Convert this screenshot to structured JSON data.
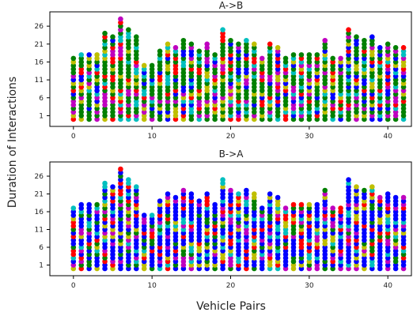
{
  "figure": {
    "ylabel": "Duration of Interactions",
    "xlabel": "Vehicle Pairs"
  },
  "colors": {
    "palette": [
      "#0000ff",
      "#ff0000",
      "#008000",
      "#00bfbf",
      "#bf00bf",
      "#bfbf00"
    ],
    "dominant_top": "#008000",
    "dominant_bottom": "#0000ff"
  },
  "chart_data": [
    {
      "type": "scatter",
      "title": "A->B",
      "xlim": [
        -3,
        43
      ],
      "ylim": [
        -2,
        30
      ],
      "xticks": [
        0,
        10,
        20,
        30,
        40
      ],
      "yticks": [
        1,
        6,
        11,
        16,
        21,
        26
      ],
      "x": [
        0,
        1,
        2,
        3,
        4,
        5,
        6,
        7,
        8,
        9,
        10,
        11,
        12,
        13,
        14,
        15,
        16,
        17,
        18,
        19,
        20,
        21,
        22,
        23,
        24,
        25,
        26,
        27,
        28,
        29,
        30,
        31,
        32,
        33,
        34,
        35,
        36,
        37,
        38,
        39,
        40,
        41,
        42
      ],
      "durations": [
        17,
        18,
        18,
        18,
        24,
        23,
        28,
        25,
        23,
        15,
        15,
        19,
        21,
        20,
        22,
        21,
        19,
        21,
        18,
        25,
        22,
        21,
        22,
        21,
        17,
        21,
        20,
        17,
        18,
        18,
        18,
        18,
        22,
        17,
        17,
        25,
        23,
        22,
        23,
        20,
        21,
        20,
        20
      ],
      "dominant_color": "green"
    },
    {
      "type": "scatter",
      "title": "B->A",
      "xlim": [
        -3,
        43
      ],
      "ylim": [
        -2,
        30
      ],
      "xticks": [
        0,
        10,
        20,
        30,
        40
      ],
      "yticks": [
        1,
        6,
        11,
        16,
        21,
        26
      ],
      "x": [
        0,
        1,
        2,
        3,
        4,
        5,
        6,
        7,
        8,
        9,
        10,
        11,
        12,
        13,
        14,
        15,
        16,
        17,
        18,
        19,
        20,
        21,
        22,
        23,
        24,
        25,
        26,
        27,
        28,
        29,
        30,
        31,
        32,
        33,
        34,
        35,
        36,
        37,
        38,
        39,
        40,
        41,
        42
      ],
      "durations": [
        17,
        18,
        18,
        18,
        24,
        23,
        28,
        25,
        23,
        15,
        15,
        19,
        21,
        20,
        22,
        21,
        19,
        21,
        18,
        25,
        22,
        21,
        22,
        21,
        17,
        21,
        20,
        17,
        18,
        18,
        18,
        18,
        22,
        17,
        17,
        25,
        23,
        22,
        23,
        20,
        21,
        20,
        20
      ],
      "dominant_color": "blue"
    }
  ]
}
